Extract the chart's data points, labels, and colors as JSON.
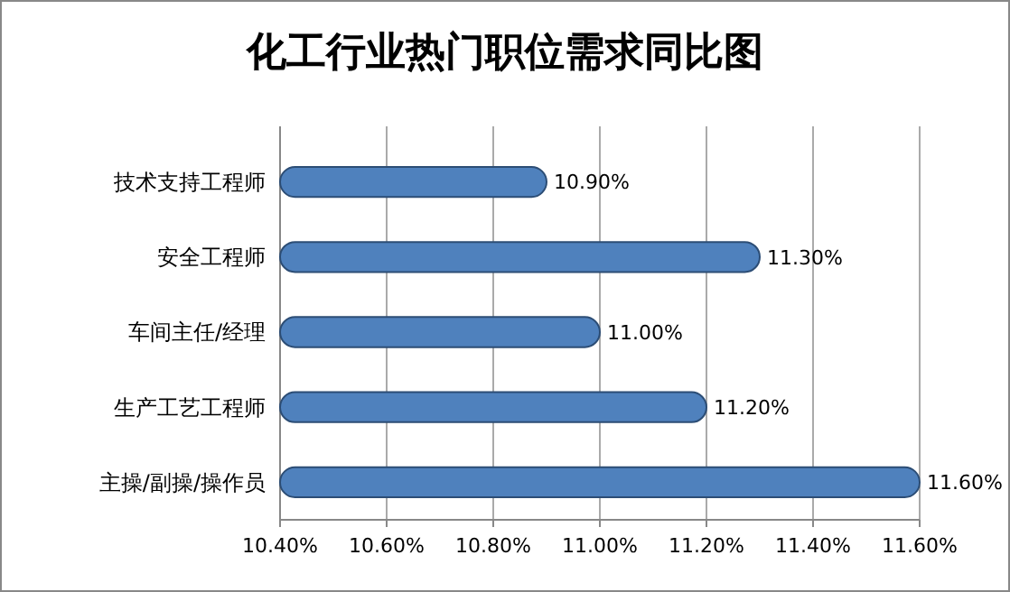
{
  "chart_data": {
    "type": "bar",
    "orientation": "horizontal",
    "title": "化工行业热门职位需求同比图",
    "categories": [
      "技术支持工程师",
      "安全工程师",
      "车间主任/经理",
      "生产工艺工程师",
      "主操/副操/操作员"
    ],
    "values": [
      10.9,
      11.3,
      11.0,
      11.2,
      11.6
    ],
    "color": "#4f81bd",
    "value_labels": [
      "10.90%",
      "11.30%",
      "11.00%",
      "11.20%",
      "11.60%"
    ],
    "xlim": [
      10.4,
      11.6
    ],
    "xticks": [
      {
        "value": 10.4,
        "label": "10.40%"
      },
      {
        "value": 10.6,
        "label": "10.60%"
      },
      {
        "value": 10.8,
        "label": "10.80%"
      },
      {
        "value": 11.0,
        "label": "11.00%"
      },
      {
        "value": 11.2,
        "label": "11.20%"
      },
      {
        "value": 11.4,
        "label": "11.40%"
      },
      {
        "value": 11.6,
        "label": "11.60%"
      }
    ],
    "grid": "x"
  }
}
